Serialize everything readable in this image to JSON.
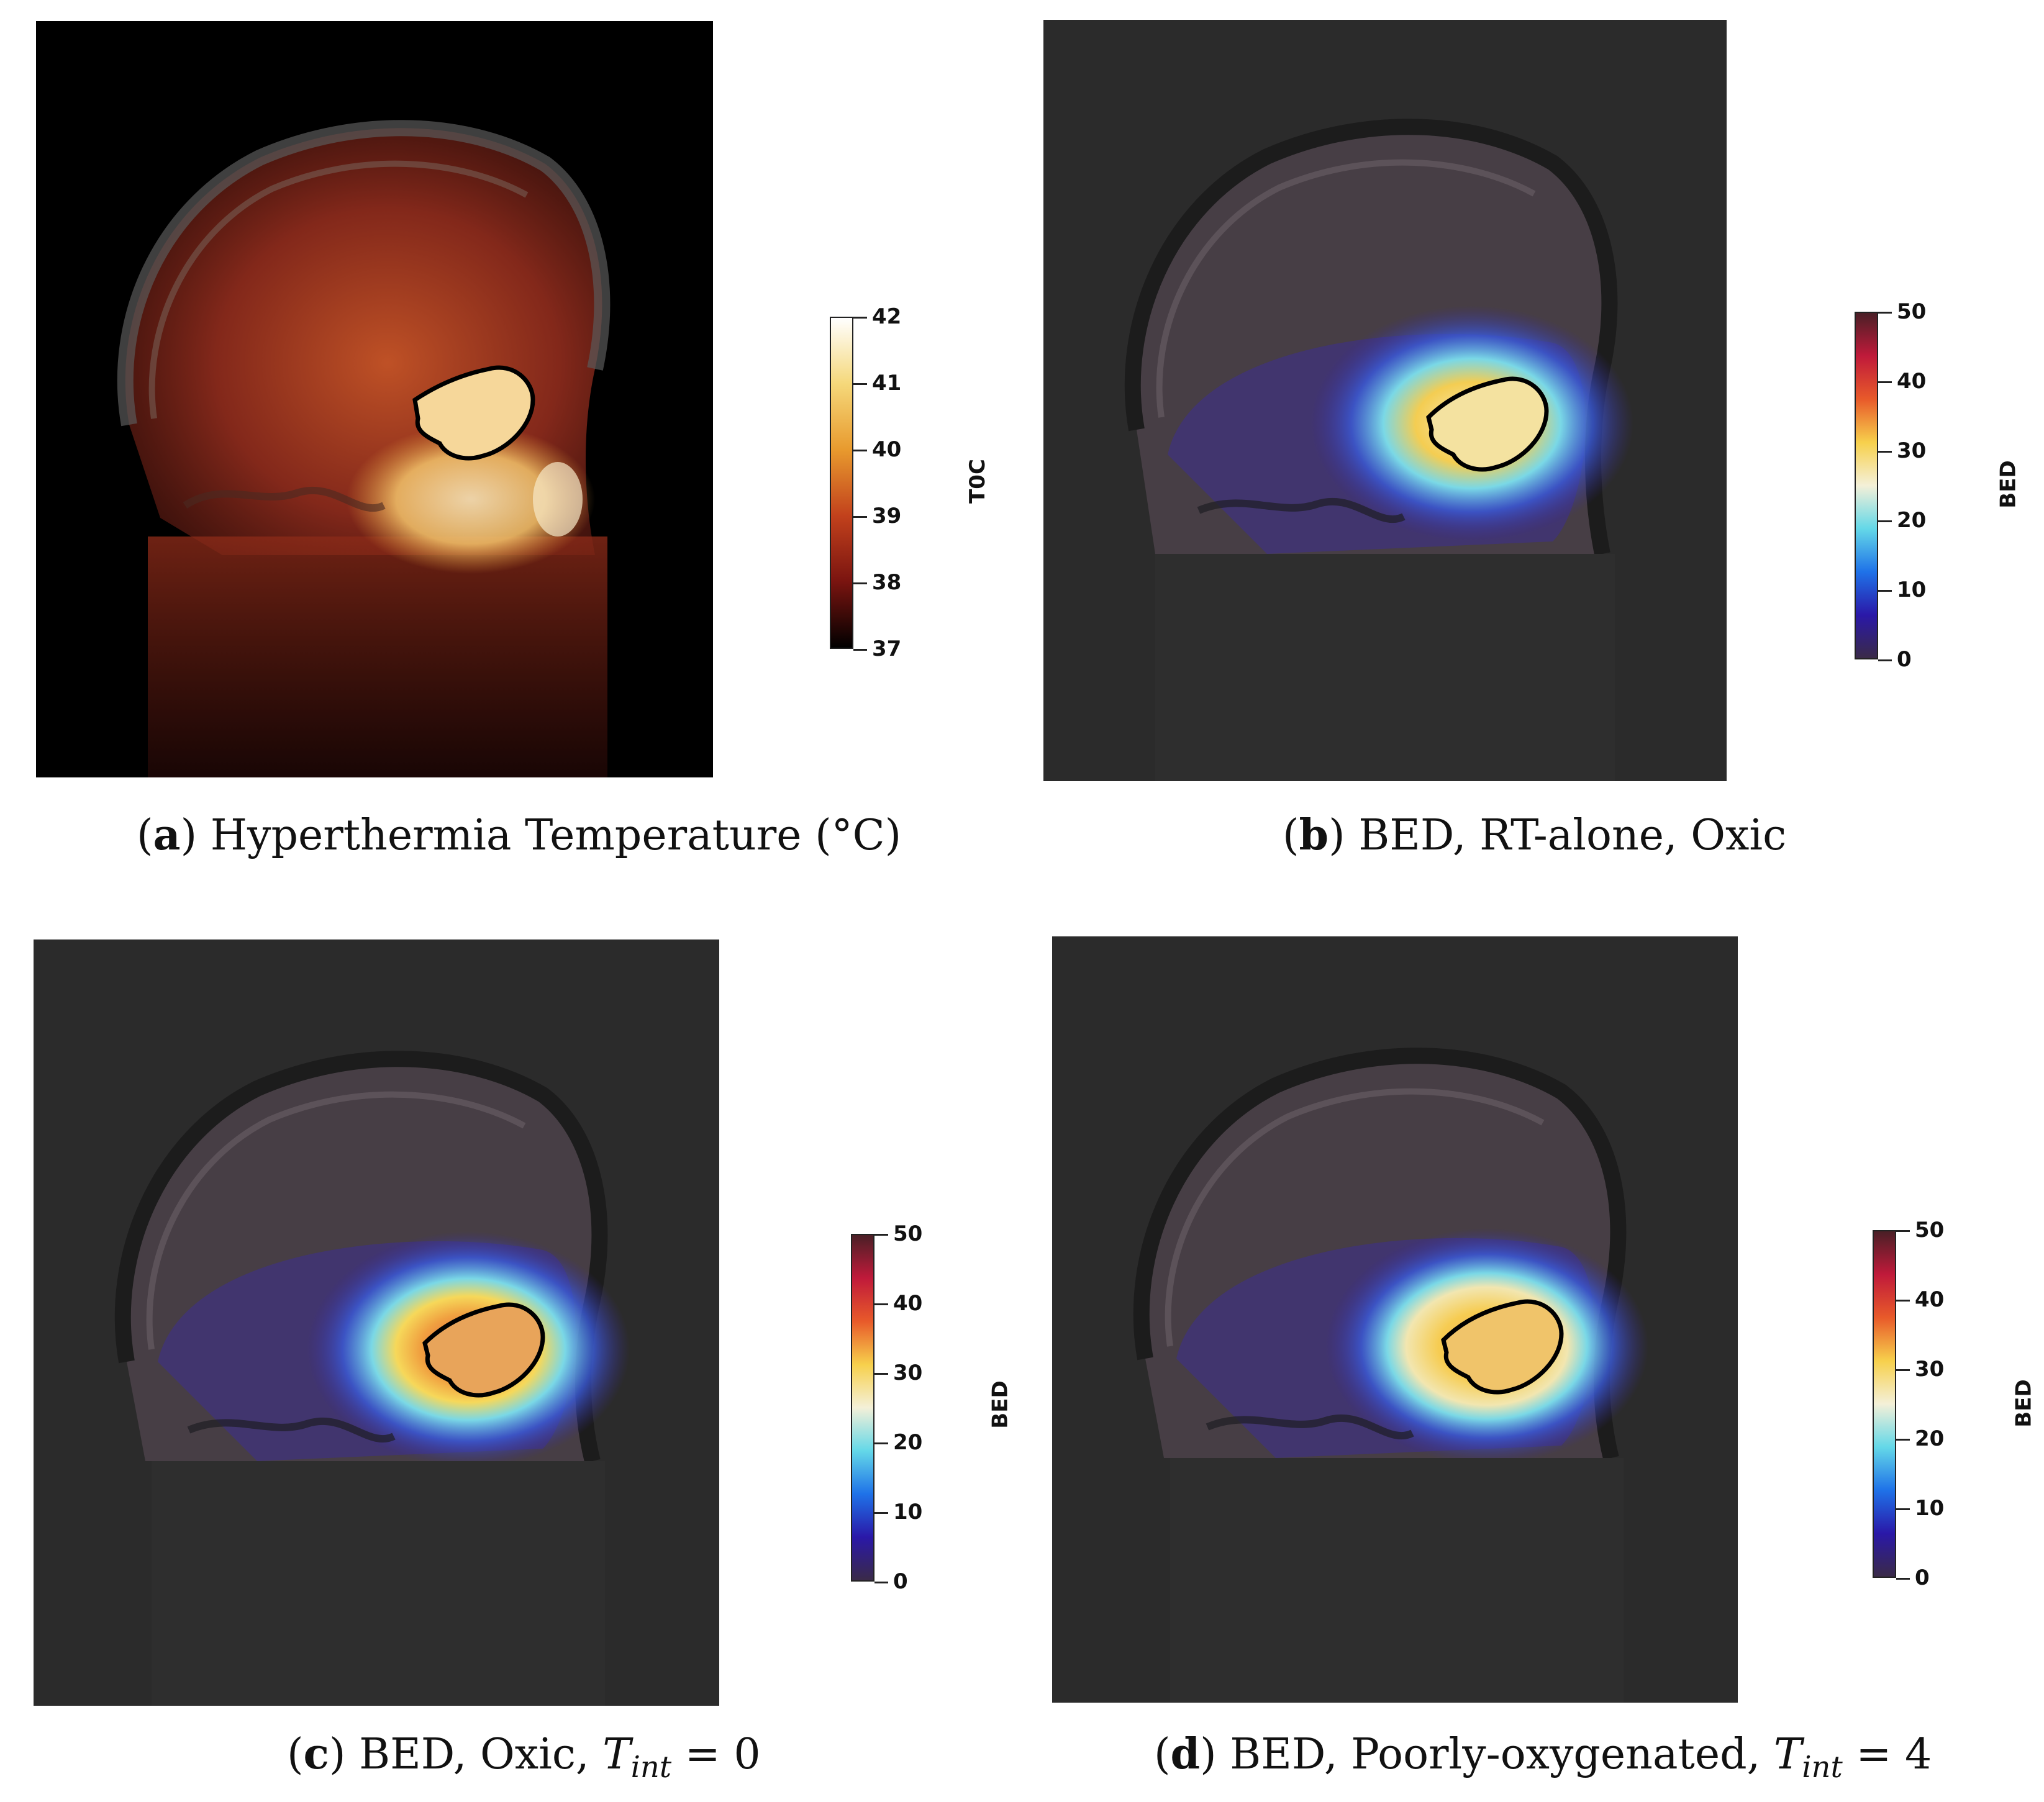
{
  "figure": {
    "panels": [
      {
        "id": "a",
        "letter": "a",
        "caption_text": "Hyperthermia Temperature (°C)",
        "colorbar": {
          "title": "T0C",
          "ticks": [
            "42",
            "41",
            "40",
            "39",
            "38",
            "37"
          ],
          "colormap": [
            "#ffffff",
            "#f5d87a",
            "#e89a2e",
            "#c2411c",
            "#7a1410",
            "#000000"
          ]
        }
      },
      {
        "id": "b",
        "letter": "b",
        "caption_text": "BED, RT-alone, Oxic",
        "colorbar": {
          "title": "BED",
          "ticks": [
            "50",
            "40",
            "30",
            "20",
            "10",
            "0"
          ],
          "colormap": [
            "#4a1f26",
            "#c01a3a",
            "#e85a2a",
            "#f7d04c",
            "#f4f0d8",
            "#64d8e8",
            "#1f72e8",
            "#2a18a8",
            "#3a2a48"
          ]
        }
      },
      {
        "id": "c",
        "letter": "c",
        "caption_prefix": "BED, Oxic, ",
        "caption_var": "T",
        "caption_sub": "int",
        "caption_suffix": " = 0",
        "colorbar": {
          "title": "BED",
          "ticks": [
            "50",
            "40",
            "30",
            "20",
            "10",
            "0"
          ],
          "colormap": [
            "#4a1f26",
            "#c01a3a",
            "#e85a2a",
            "#f7d04c",
            "#f4f0d8",
            "#64d8e8",
            "#1f72e8",
            "#2a18a8",
            "#3a2a48"
          ]
        }
      },
      {
        "id": "d",
        "letter": "d",
        "caption_prefix": "BED, Poorly-oxygenated, ",
        "caption_var": "T",
        "caption_sub": "int",
        "caption_suffix": " = 4",
        "colorbar": {
          "title": "BED",
          "ticks": [
            "50",
            "40",
            "30",
            "20",
            "10",
            "0"
          ],
          "colormap": [
            "#4a1f26",
            "#c01a3a",
            "#e85a2a",
            "#f7d04c",
            "#f4f0d8",
            "#64d8e8",
            "#1f72e8",
            "#2a18a8",
            "#3a2a48"
          ]
        }
      }
    ]
  }
}
